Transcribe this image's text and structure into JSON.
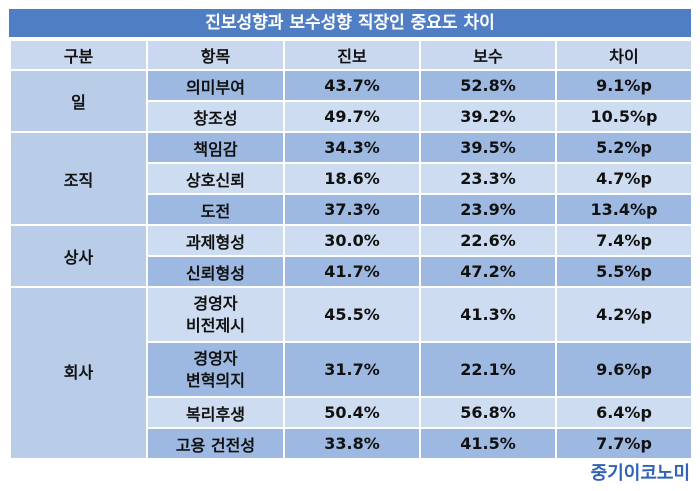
{
  "title": "진보성향과 보수성향 직장인 중요도 차이",
  "headers": [
    "구분",
    "항목",
    "진보",
    "보수",
    "차이"
  ],
  "groups": [
    {
      "category": "일",
      "rows": [
        {
          "item": "의미부여",
          "progressive": "43.7%",
          "conservative": "52.8%",
          "diff": "9.1%p"
        },
        {
          "item": "창조성",
          "progressive": "49.7%",
          "conservative": "39.2%",
          "diff": "10.5%p"
        }
      ]
    },
    {
      "category": "조직",
      "rows": [
        {
          "item": "책임감",
          "progressive": "34.3%",
          "conservative": "39.5%",
          "diff": "5.2%p"
        },
        {
          "item": "상호신뢰",
          "progressive": "18.6%",
          "conservative": "23.3%",
          "diff": "4.7%p"
        },
        {
          "item": "도전",
          "progressive": "37.3%",
          "conservative": "23.9%",
          "diff": "13.4%p"
        }
      ]
    },
    {
      "category": "상사",
      "rows": [
        {
          "item": "과제형성",
          "progressive": "30.0%",
          "conservative": "22.6%",
          "diff": "7.4%p"
        },
        {
          "item": "신뢰형성",
          "progressive": "41.7%",
          "conservative": "47.2%",
          "diff": "5.5%p"
        }
      ]
    },
    {
      "category": "회사",
      "rows": [
        {
          "item_line1": "경영자",
          "item_line2": "비전제시",
          "progressive": "45.5%",
          "conservative": "41.3%",
          "diff": "4.2%p"
        },
        {
          "item_line1": "경영자",
          "item_line2": "변혁의지",
          "progressive": "31.7%",
          "conservative": "22.1%",
          "diff": "9.6%p"
        },
        {
          "item": "복리후생",
          "progressive": "50.4%",
          "conservative": "56.8%",
          "diff": "6.4%p"
        },
        {
          "item": "고용 건전성",
          "progressive": "33.8%",
          "conservative": "41.5%",
          "diff": "7.7%p"
        }
      ]
    }
  ],
  "logo": "중기이코노미",
  "colors": {
    "title_bg": "#4f7ec4",
    "header_bg": "#c9d8ee",
    "row_dark": "#9db9e1",
    "row_light": "#cddcf0",
    "logo": "#2f63b8"
  }
}
